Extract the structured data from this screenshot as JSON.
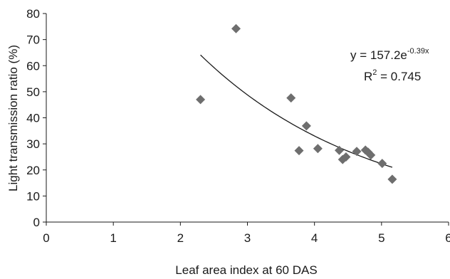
{
  "chart_data": {
    "type": "scatter",
    "title": "",
    "xlabel": "Leaf area index at 60 DAS",
    "ylabel": "Light transmission ratio (%)",
    "xlim": [
      0,
      6
    ],
    "ylim": [
      0,
      80
    ],
    "x_ticks": [
      "0",
      "1",
      "2",
      "3",
      "4",
      "5",
      "6"
    ],
    "y_ticks": [
      "0",
      "10",
      "20",
      "30",
      "40",
      "50",
      "60",
      "70",
      "80"
    ],
    "grid": false,
    "legend": "none",
    "marker": "diamond",
    "marker_color": "#6e6e6e",
    "points": [
      {
        "x": 2.3,
        "y": 47.0
      },
      {
        "x": 2.83,
        "y": 74.2
      },
      {
        "x": 3.65,
        "y": 47.6
      },
      {
        "x": 3.77,
        "y": 27.4
      },
      {
        "x": 3.88,
        "y": 36.9
      },
      {
        "x": 4.05,
        "y": 28.2
      },
      {
        "x": 4.37,
        "y": 27.5
      },
      {
        "x": 4.42,
        "y": 24.0
      },
      {
        "x": 4.47,
        "y": 25.0
      },
      {
        "x": 4.63,
        "y": 27.1
      },
      {
        "x": 4.76,
        "y": 27.6
      },
      {
        "x": 4.8,
        "y": 26.8
      },
      {
        "x": 4.84,
        "y": 25.7
      },
      {
        "x": 5.01,
        "y": 22.5
      },
      {
        "x": 5.16,
        "y": 16.4
      }
    ],
    "trendline": {
      "type": "exponential",
      "a": 157.2,
      "b": -0.39,
      "x_range": [
        2.3,
        5.16
      ],
      "color": "#1a1a1a"
    },
    "equation": {
      "prefix": "y = 157.2e",
      "exponent": "-0.39x",
      "r2_prefix": "R",
      "r2_sup": "2",
      "r2_value": " = 0.745"
    }
  }
}
